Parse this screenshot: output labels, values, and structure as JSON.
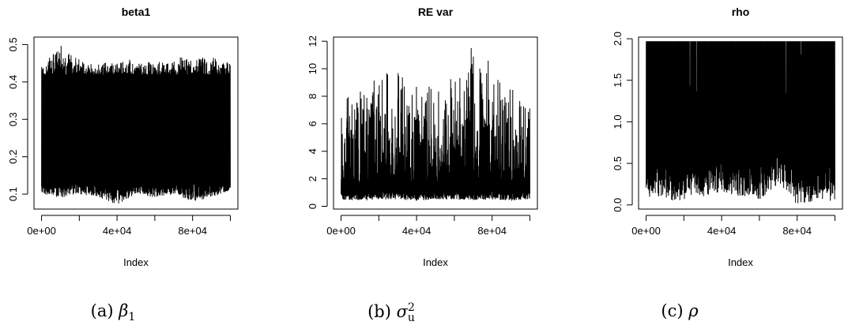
{
  "chart_data": [
    {
      "type": "line",
      "title": "beta1",
      "xlabel": "Index",
      "ylabel": "",
      "x_range": [
        1,
        100000
      ],
      "xticks": [
        "0e+00",
        "4e+04",
        "8e+04"
      ],
      "yticks": [
        "0.1",
        "0.2",
        "0.3",
        "0.4",
        "0.5"
      ],
      "ylim": [
        0.07,
        0.5
      ],
      "series": [
        {
          "x": [
            1,
            10000,
            20000,
            30000,
            40000,
            50000,
            60000,
            70000,
            80000,
            90000,
            100000
          ],
          "y_min": [
            0.1,
            0.09,
            0.1,
            0.09,
            0.07,
            0.1,
            0.09,
            0.1,
            0.08,
            0.09,
            0.11
          ],
          "y_max": [
            0.44,
            0.5,
            0.46,
            0.45,
            0.46,
            0.46,
            0.45,
            0.47,
            0.46,
            0.47,
            0.45
          ]
        }
      ]
    },
    {
      "type": "line",
      "title": "RE var",
      "xlabel": "Index",
      "ylabel": "",
      "x_range": [
        1,
        100000
      ],
      "xticks": [
        "0e+00",
        "4e+04",
        "8e+04"
      ],
      "yticks": [
        "0",
        "2",
        "4",
        "6",
        "8",
        "10",
        "12"
      ],
      "ylim": [
        0.3,
        11.8
      ],
      "series": [
        {
          "x": [
            1,
            10000,
            20000,
            30000,
            40000,
            50000,
            60000,
            70000,
            80000,
            90000,
            100000
          ],
          "y_min": [
            0.5,
            0.4,
            0.5,
            0.5,
            0.4,
            0.5,
            0.5,
            0.4,
            0.5,
            0.4,
            0.5
          ],
          "y_max": [
            7.7,
            8.5,
            9.5,
            10.0,
            9.5,
            8.3,
            9.8,
            11.8,
            10.3,
            8.6,
            7.3
          ]
        }
      ]
    },
    {
      "type": "line",
      "title": "rho",
      "xlabel": "Index",
      "ylabel": "",
      "x_range": [
        1,
        100000
      ],
      "xticks": [
        "0e+00",
        "4e+04",
        "8e+04"
      ],
      "yticks": [
        "0.0",
        "0.5",
        "1.0",
        "1.5",
        "2.0"
      ],
      "ylim": [
        0.0,
        1.97
      ],
      "series": [
        {
          "x": [
            1,
            10000,
            20000,
            30000,
            40000,
            50000,
            60000,
            70000,
            80000,
            90000,
            100000
          ],
          "y_min": [
            0.1,
            0.05,
            0.05,
            0.1,
            0.15,
            0.1,
            0.05,
            0.25,
            0.0,
            0.05,
            0.05
          ],
          "y_max": [
            1.97,
            1.97,
            1.97,
            1.97,
            1.97,
            1.97,
            1.97,
            1.97,
            1.97,
            1.97,
            1.97
          ]
        }
      ]
    }
  ],
  "captions": [
    {
      "label": "(a)",
      "symbol": "β",
      "sub": "1",
      "sup": ""
    },
    {
      "label": "(b)",
      "symbol": "σ",
      "sub": "u",
      "sup": "2"
    },
    {
      "label": "(c)",
      "symbol": "ρ",
      "sub": "",
      "sup": ""
    }
  ]
}
